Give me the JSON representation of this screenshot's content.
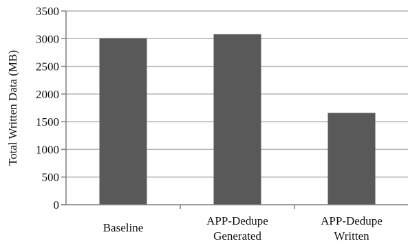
{
  "chart_data": {
    "type": "bar",
    "title": "",
    "xlabel": "",
    "ylabel": "Total Written Data (MB)",
    "categories": [
      [
        "Baseline"
      ],
      [
        "APP-Dedupe",
        "Generated"
      ],
      [
        "APP-Dedupe",
        "Written"
      ]
    ],
    "values": [
      3010,
      3080,
      1660
    ],
    "ylim": [
      0,
      3500
    ],
    "yticks": [
      0,
      500,
      1000,
      1500,
      2000,
      2500,
      3000,
      3500
    ],
    "ytick_labels": [
      "0",
      "500",
      "1000",
      "1500",
      "2000",
      "2500",
      "3000",
      "3500"
    ],
    "grid": true,
    "legend": "none",
    "bar_color": "#595959",
    "grid_color": "#b3b3b3",
    "axis_color": "#7f7f7f"
  }
}
